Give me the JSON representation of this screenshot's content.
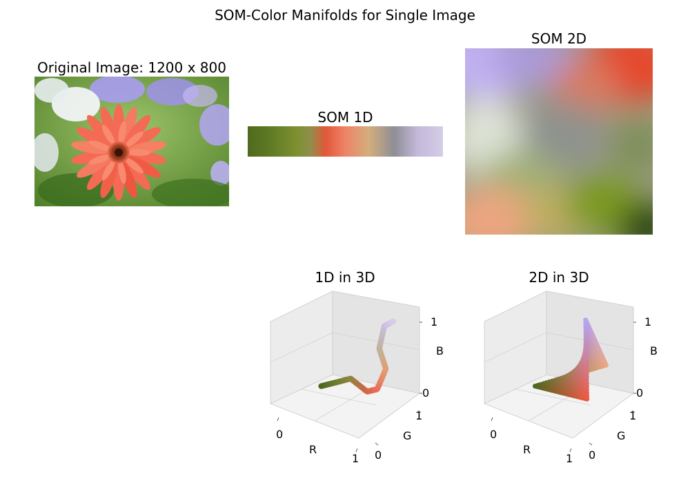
{
  "figure": {
    "title": "SOM-Color Manifolds for Single Image"
  },
  "panels": {
    "original": {
      "title": "Original Image: 1200 x 800"
    },
    "som1d": {
      "title": "SOM 1D"
    },
    "som2d": {
      "title": "SOM 2D"
    },
    "d1in3d": {
      "title": "1D in 3D"
    },
    "d2in3d": {
      "title": "2D in 3D"
    }
  },
  "colors": {
    "som1d_stops": [
      "#4f6a1d",
      "#7d9030",
      "#8f8e4a",
      "#e2583b",
      "#ee8468",
      "#d3ae7c",
      "#8f8e96",
      "#c4b9d9",
      "#d5cde7"
    ],
    "som2d_corners": {
      "top_left": "#c1b1f2",
      "top_right": "#e6472c",
      "bottom_left": "#eda580",
      "bottom_right": "#2f4a13"
    },
    "petal": "#f46a55",
    "leaf": "#4f7d2c",
    "violet": "#a79ae6"
  },
  "chart_data": [
    {
      "type": "scatter",
      "title": "1D in 3D",
      "xlabel": "R",
      "ylabel": "G",
      "zlabel": "B",
      "xlim": [
        0,
        1
      ],
      "ylim": [
        0,
        1
      ],
      "zlim": [
        0,
        1
      ],
      "x_ticks": [
        "0",
        "1"
      ],
      "y_ticks": [
        "0",
        "1"
      ],
      "z_ticks": [
        "0",
        "1"
      ],
      "points": [
        {
          "r": 0.3,
          "g": 0.4,
          "b": 0.12
        },
        {
          "r": 0.4,
          "g": 0.48,
          "b": 0.16
        },
        {
          "r": 0.55,
          "g": 0.52,
          "b": 0.25
        },
        {
          "r": 0.82,
          "g": 0.4,
          "b": 0.27
        },
        {
          "r": 0.92,
          "g": 0.42,
          "b": 0.33
        },
        {
          "r": 0.88,
          "g": 0.62,
          "b": 0.45
        },
        {
          "r": 0.75,
          "g": 0.7,
          "b": 0.6
        },
        {
          "r": 0.78,
          "g": 0.74,
          "b": 0.86
        },
        {
          "r": 0.84,
          "g": 0.8,
          "b": 0.91
        }
      ],
      "grid": true
    },
    {
      "type": "scatter",
      "title": "2D in 3D",
      "xlabel": "R",
      "ylabel": "G",
      "zlabel": "B",
      "xlim": [
        0,
        1
      ],
      "ylim": [
        0,
        1
      ],
      "zlim": [
        0,
        1
      ],
      "x_ticks": [
        "0",
        "1"
      ],
      "y_ticks": [
        "0",
        "1"
      ],
      "z_ticks": [
        "0",
        "1"
      ],
      "surface_corners": {
        "low": {
          "r": 0.3,
          "g": 0.4,
          "b": 0.12
        },
        "red": {
          "r": 0.92,
          "g": 0.35,
          "b": 0.25
        },
        "violet": {
          "r": 0.7,
          "g": 0.65,
          "b": 0.95
        },
        "peach": {
          "r": 0.93,
          "g": 0.65,
          "b": 0.5
        }
      },
      "grid": true
    }
  ]
}
